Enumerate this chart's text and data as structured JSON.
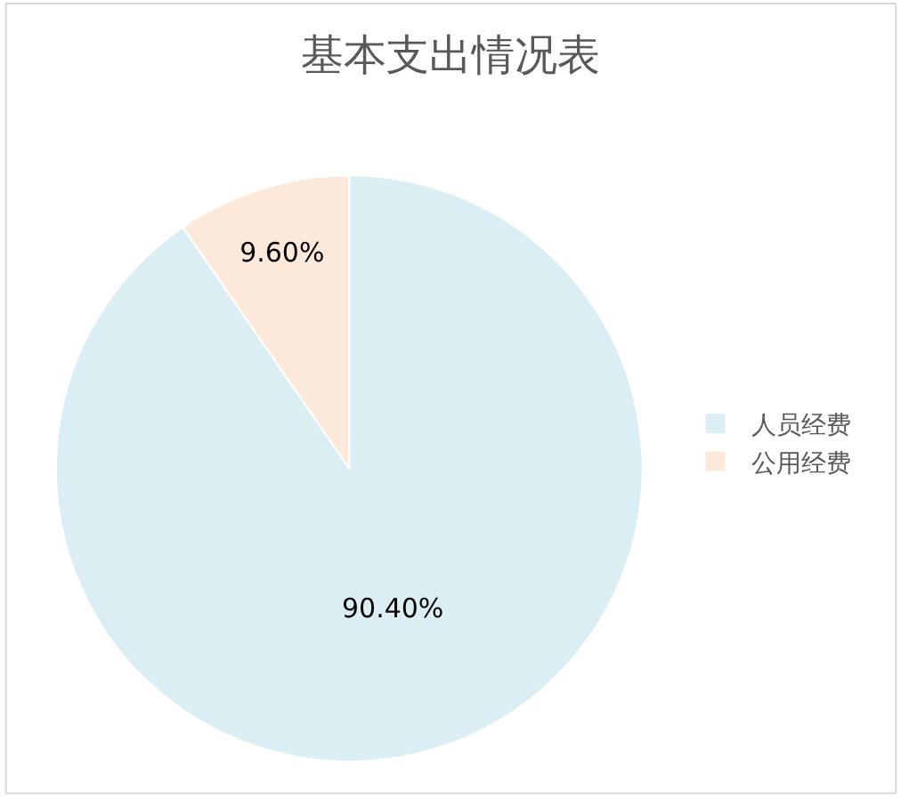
{
  "chart_data": {
    "type": "pie",
    "title": "基本支出情况表",
    "categories": [
      "人员经费",
      "公用经费"
    ],
    "values": [
      90.4,
      9.6
    ],
    "value_labels": [
      "90.40%",
      "9.60%"
    ],
    "colors": [
      "#daeef3",
      "#fde9d9"
    ],
    "legend": "right"
  }
}
